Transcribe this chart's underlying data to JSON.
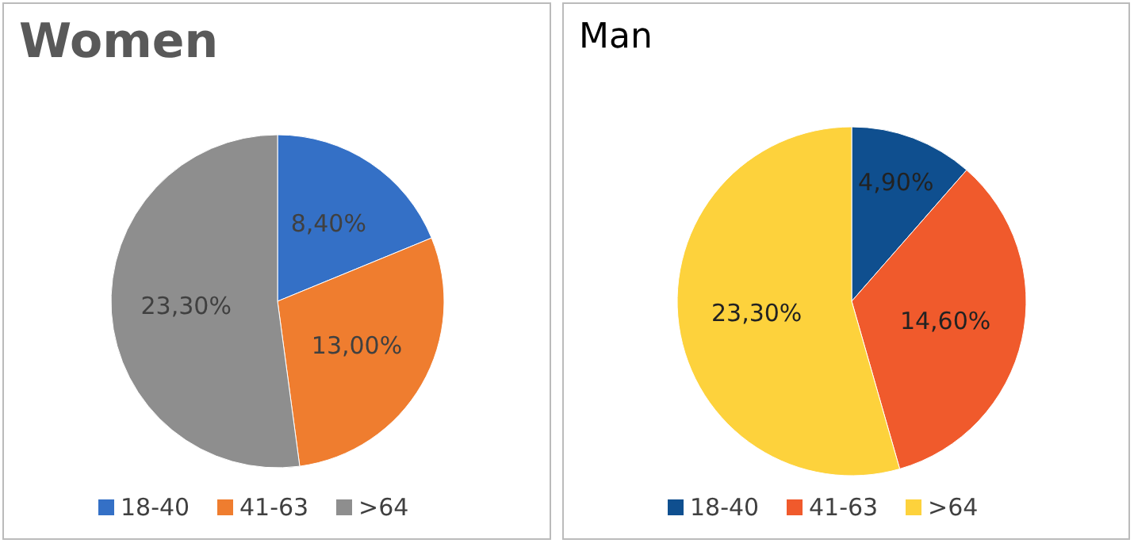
{
  "chart_data": [
    {
      "type": "pie",
      "title": "Women",
      "categories": [
        "18-40",
        "41-63",
        ">64"
      ],
      "values": [
        8.4,
        13.0,
        23.3
      ],
      "value_labels": [
        "8,40%",
        "13,00%",
        "23,30%"
      ],
      "colors": [
        "#3470c6",
        "#ef7d2f",
        "#8e8e8e"
      ],
      "legend": "bottom"
    },
    {
      "type": "pie",
      "title": "Man",
      "categories": [
        "18-40",
        "41-63",
        ">64"
      ],
      "values": [
        4.9,
        14.6,
        23.3
      ],
      "value_labels": [
        "4,90%",
        "14,60%",
        "23,30%"
      ],
      "colors": [
        "#0f4f8f",
        "#f05a2c",
        "#fdd23c"
      ],
      "legend": "bottom"
    }
  ]
}
